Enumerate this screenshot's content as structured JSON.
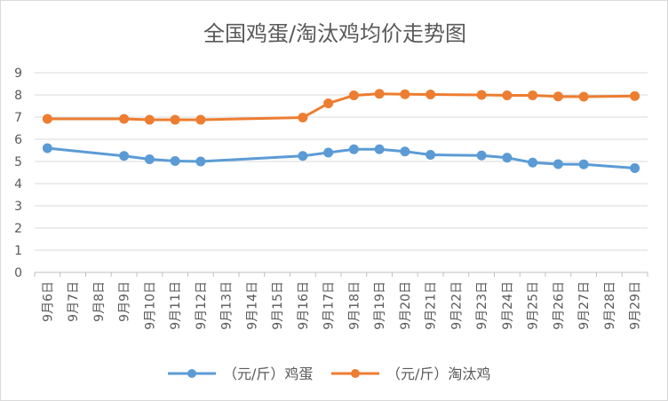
{
  "chart_data": {
    "type": "line",
    "title": "全国鸡蛋/淘汰鸡均价走势图",
    "categories": [
      "9月6日",
      "9月7日",
      "9月8日",
      "9月9日",
      "9月10日",
      "9月11日",
      "9月12日",
      "9月13日",
      "9月14日",
      "9月15日",
      "9月16日",
      "9月17日",
      "9月18日",
      "9月19日",
      "9月20日",
      "9月21日",
      "9月22日",
      "9月23日",
      "9月24日",
      "9月25日",
      "9月26日",
      "9月27日",
      "9月28日",
      "9月29日"
    ],
    "ylim": [
      0,
      9
    ],
    "yticks": [
      0,
      1,
      2,
      3,
      4,
      5,
      6,
      7,
      8,
      9
    ],
    "grid": true,
    "legend_position": "bottom",
    "series": [
      {
        "name": "（元/斤）鸡蛋",
        "color": "#5b9bd5",
        "values": [
          5.6,
          null,
          null,
          5.25,
          5.1,
          5.02,
          5.0,
          null,
          null,
          null,
          5.25,
          5.4,
          5.55,
          5.55,
          5.45,
          5.3,
          null,
          5.27,
          5.17,
          4.95,
          4.88,
          4.87,
          null,
          4.7
        ]
      },
      {
        "name": "（元/斤）淘汰鸡",
        "color": "#ed7d31",
        "values": [
          6.92,
          null,
          null,
          6.92,
          6.88,
          6.88,
          6.88,
          null,
          null,
          null,
          6.98,
          7.62,
          7.98,
          8.05,
          8.03,
          8.02,
          null,
          8.0,
          7.98,
          7.98,
          7.93,
          7.92,
          null,
          7.95
        ]
      }
    ]
  }
}
